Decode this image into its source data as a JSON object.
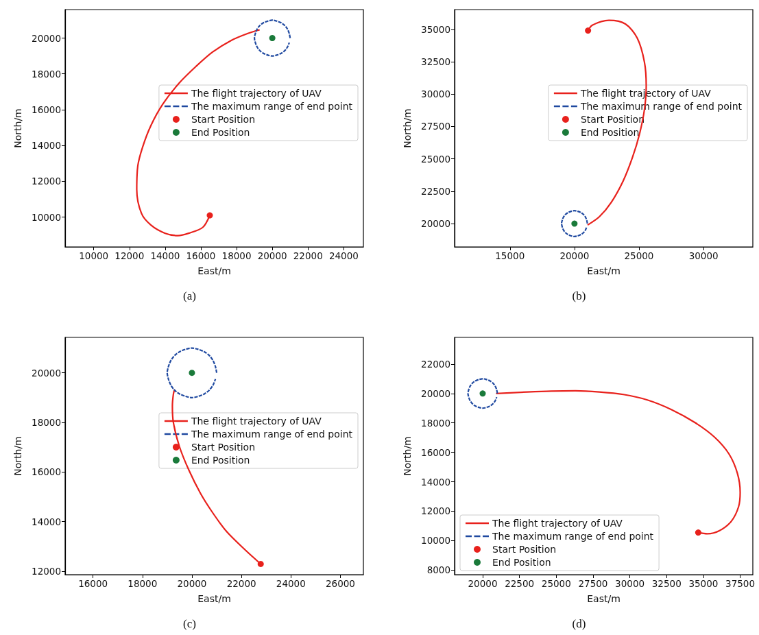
{
  "chart_data": [
    {
      "type": "line",
      "xlabel": "East/m",
      "ylabel": "North/m",
      "annotations": [
        "(a)"
      ],
      "xlim": [
        8400,
        25100
      ],
      "ylim": [
        8340,
        21590
      ],
      "xticks": [
        10000,
        12000,
        14000,
        16000,
        18000,
        20000,
        22000,
        24000
      ],
      "yticks": [
        10000,
        12000,
        14000,
        16000,
        18000,
        20000
      ],
      "grid": false,
      "legend": "right",
      "series": [
        {
          "name": "The flight trajectory of UAV",
          "color": "#e8211c",
          "line_style": "solid",
          "x": [
            16500,
            16110,
            15320,
            14720,
            14000,
            13200,
            12670,
            12410,
            12470,
            12740,
            13200,
            13860,
            14790,
            15720,
            16640,
            17700,
            18630,
            19290
          ],
          "values": [
            10100,
            9430,
            9100,
            8970,
            9100,
            9560,
            10220,
            11550,
            12870,
            13920,
            15110,
            16300,
            17490,
            18410,
            19210,
            19870,
            20260,
            20460
          ]
        },
        {
          "name": "The maximum range of end point",
          "color": "#1f49a0",
          "line_style": "dashed",
          "x": [
            21000,
            20950,
            20850,
            20700,
            20500,
            20250,
            20000,
            19750,
            19500,
            19300,
            19150,
            19050,
            19000,
            19050,
            19150,
            19300,
            19500,
            19750,
            20000,
            20250,
            20500,
            20700,
            20850,
            20950
          ],
          "values": [
            20000,
            20250,
            20500,
            20700,
            20850,
            20950,
            21000,
            20950,
            20850,
            20700,
            20500,
            20250,
            20000,
            19750,
            19500,
            19300,
            19150,
            19050,
            19000,
            19050,
            19150,
            19300,
            19500,
            19750
          ]
        },
        {
          "name": "Start Position",
          "type": "scatter",
          "marker": "circle",
          "color": "#e8211c",
          "x": [
            16500
          ],
          "values": [
            10100
          ]
        },
        {
          "name": "End Position",
          "type": "scatter",
          "marker": "circle",
          "color": "#1a7a3a",
          "x": [
            20000
          ],
          "values": [
            20000
          ]
        }
      ]
    },
    {
      "type": "line",
      "xlabel": "East/m",
      "ylabel": "North/m",
      "annotations": [
        "(b)"
      ],
      "xlim": [
        10710,
        33820
      ],
      "ylim": [
        18200,
        36530
      ],
      "xticks": [
        15000,
        20000,
        25000,
        30000
      ],
      "yticks": [
        20000,
        22500,
        25000,
        27500,
        30000,
        32500,
        35000
      ],
      "grid": false,
      "legend": "right",
      "series": [
        {
          "name": "The flight trajectory of UAV",
          "color": "#e8211c",
          "line_style": "solid",
          "x": [
            21050,
            21380,
            22670,
            23950,
            24870,
            25420,
            25560,
            25420,
            25050,
            24500,
            23770,
            22850,
            21930,
            21020
          ],
          "values": [
            34910,
            35330,
            35700,
            35420,
            34320,
            32480,
            30640,
            28800,
            26960,
            25130,
            23290,
            21640,
            20530,
            19890
          ]
        },
        {
          "name": "The maximum range of end point",
          "color": "#1f49a0",
          "line_style": "dashed",
          "x": [
            21000,
            20950,
            20850,
            20700,
            20500,
            20250,
            20000,
            19750,
            19500,
            19300,
            19150,
            19050,
            19000,
            19050,
            19150,
            19300,
            19500,
            19750,
            20000,
            20250,
            20500,
            20700,
            20850,
            20950
          ],
          "values": [
            20000,
            20250,
            20500,
            20700,
            20850,
            20950,
            21000,
            20950,
            20850,
            20700,
            20500,
            20250,
            20000,
            19750,
            19500,
            19300,
            19150,
            19050,
            19000,
            19050,
            19150,
            19300,
            19500,
            19750
          ]
        },
        {
          "name": "Start Position",
          "type": "scatter",
          "marker": "circle",
          "color": "#e8211c",
          "x": [
            21050
          ],
          "values": [
            34910
          ]
        },
        {
          "name": "End Position",
          "type": "scatter",
          "marker": "circle",
          "color": "#1a7a3a",
          "x": [
            20000
          ],
          "values": [
            20000
          ]
        }
      ]
    },
    {
      "type": "line",
      "xlabel": "East/m",
      "ylabel": "North/m",
      "annotations": [
        "(c)"
      ],
      "xlim": [
        14875,
        26930
      ],
      "ylim": [
        11860,
        21430
      ],
      "xticks": [
        16000,
        18000,
        20000,
        22000,
        24000,
        26000
      ],
      "yticks": [
        12000,
        14000,
        16000,
        18000,
        20000
      ],
      "grid": false,
      "legend": "right",
      "series": [
        {
          "name": "The flight trajectory of UAV",
          "color": "#e8211c",
          "line_style": "solid",
          "x": [
            22780,
            22170,
            21400,
            20830,
            20350,
            19870,
            19490,
            19250,
            19210,
            19250,
            19300
          ],
          "values": [
            12290,
            12840,
            13600,
            14370,
            15130,
            16090,
            17040,
            18000,
            18660,
            19140,
            19330
          ]
        },
        {
          "name": "The maximum range of end point",
          "color": "#1f49a0",
          "line_style": "dashed",
          "x": [
            21000,
            20950,
            20850,
            20700,
            20500,
            20250,
            20000,
            19750,
            19500,
            19300,
            19150,
            19050,
            19000,
            19050,
            19150,
            19300,
            19500,
            19750,
            20000,
            20250,
            20500,
            20700,
            20850,
            20950
          ],
          "values": [
            20000,
            20250,
            20500,
            20700,
            20850,
            20950,
            21000,
            20950,
            20850,
            20700,
            20500,
            20250,
            20000,
            19750,
            19500,
            19300,
            19150,
            19050,
            19000,
            19050,
            19150,
            19300,
            19500,
            19750
          ]
        },
        {
          "name": "Start Position",
          "type": "scatter",
          "marker": "circle",
          "color": "#e8211c",
          "x": [
            22780
          ],
          "values": [
            12290
          ]
        },
        {
          "name": "End Position",
          "type": "scatter",
          "marker": "circle",
          "color": "#1a7a3a",
          "x": [
            20000
          ],
          "values": [
            20000
          ]
        }
      ]
    },
    {
      "type": "line",
      "xlabel": "East/m",
      "ylabel": "North/m",
      "annotations": [
        "(d)"
      ],
      "xlim": [
        18090,
        38360
      ],
      "ylim": [
        7690,
        23810
      ],
      "xticks": [
        20000,
        22500,
        25000,
        27500,
        30000,
        32500,
        35000,
        37500
      ],
      "yticks": [
        8000,
        10000,
        12000,
        14000,
        16000,
        18000,
        20000,
        22000
      ],
      "grid": false,
      "legend": "bottom left",
      "series": [
        {
          "name": "The flight trajectory of UAV",
          "color": "#e8211c",
          "line_style": "solid",
          "x": [
            34650,
            35270,
            36080,
            36900,
            37390,
            37500,
            37310,
            36740,
            35760,
            34450,
            32820,
            31190,
            29560,
            27930,
            26300,
            24660,
            23030,
            20910
          ],
          "values": [
            10550,
            10470,
            10670,
            11320,
            12300,
            13280,
            14580,
            15890,
            17030,
            18010,
            18910,
            19560,
            19930,
            20100,
            20180,
            20160,
            20100,
            20000
          ]
        },
        {
          "name": "The maximum range of end point",
          "color": "#1f49a0",
          "line_style": "dashed",
          "x": [
            21000,
            20950,
            20850,
            20700,
            20500,
            20250,
            20000,
            19750,
            19500,
            19300,
            19150,
            19050,
            19000,
            19050,
            19150,
            19300,
            19500,
            19750,
            20000,
            20250,
            20500,
            20700,
            20850,
            20950
          ],
          "values": [
            20000,
            20250,
            20500,
            20700,
            20850,
            20950,
            21000,
            20950,
            20850,
            20700,
            20500,
            20250,
            20000,
            19750,
            19500,
            19300,
            19150,
            19050,
            19000,
            19050,
            19150,
            19300,
            19500,
            19750
          ]
        },
        {
          "name": "Start Position",
          "type": "scatter",
          "marker": "circle",
          "color": "#e8211c",
          "x": [
            34650
          ],
          "values": [
            10550
          ]
        },
        {
          "name": "End Position",
          "type": "scatter",
          "marker": "circle",
          "color": "#1a7a3a",
          "x": [
            20000
          ],
          "values": [
            20000
          ]
        }
      ]
    }
  ]
}
